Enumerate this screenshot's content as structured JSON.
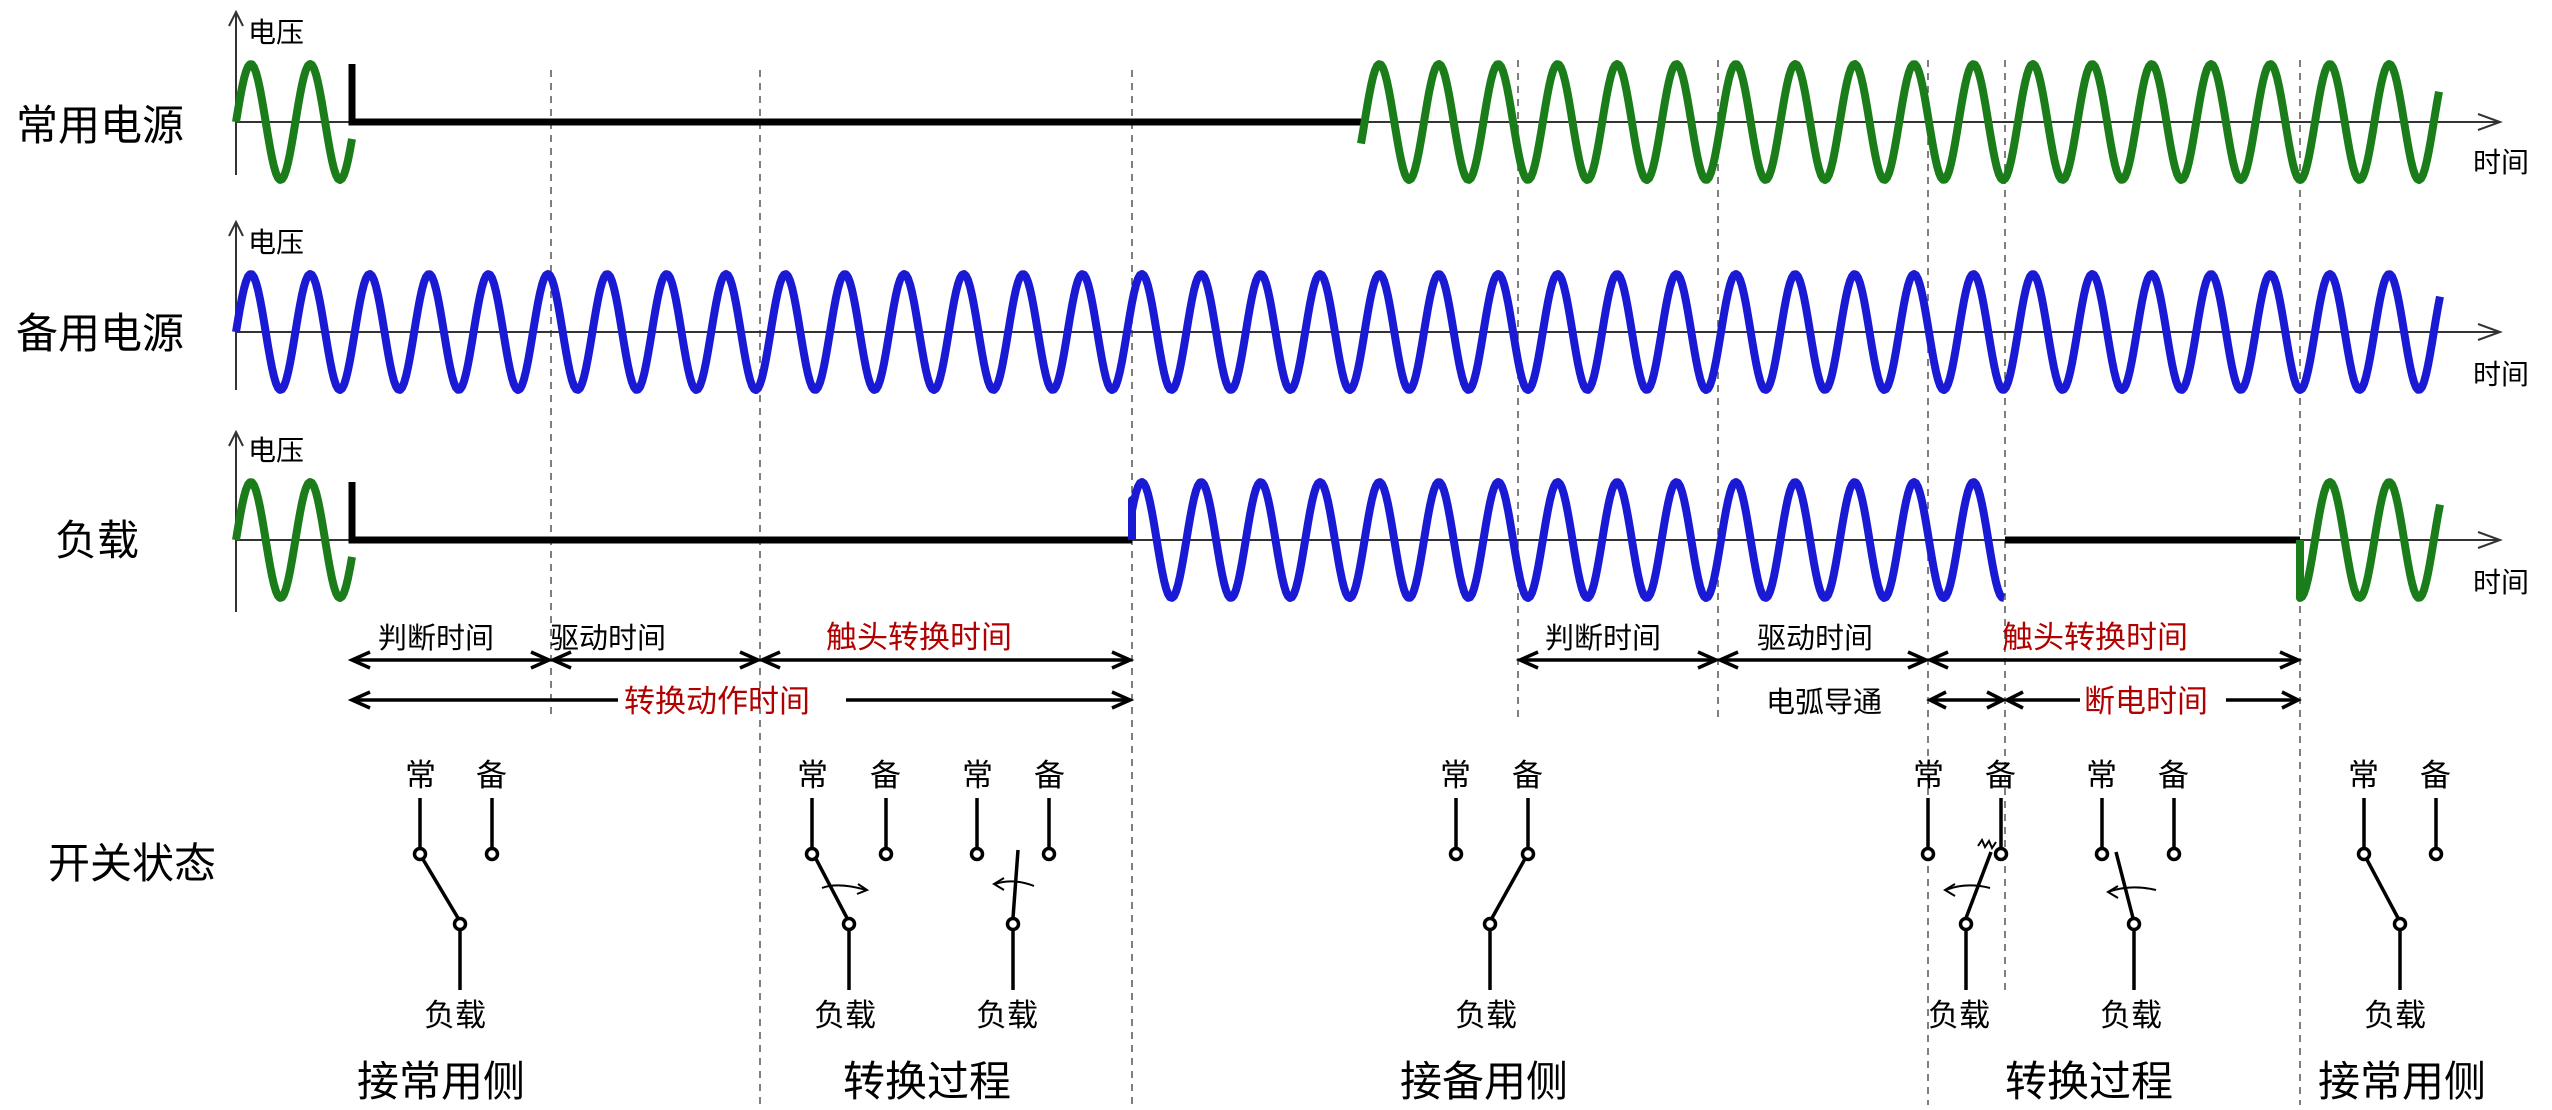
{
  "rows": [
    {
      "label": "常用电源",
      "y_axis": "电压",
      "x_axis": "时间"
    },
    {
      "label": "备用电源",
      "y_axis": "电压",
      "x_axis": "时间"
    },
    {
      "label": "负载",
      "y_axis": "电压",
      "x_axis": "时间"
    }
  ],
  "switch_row_label": "开关状态",
  "timing_left": {
    "judge": "判断时间",
    "drive": "驱动时间",
    "contact": "触头转换时间",
    "total": "转换动作时间"
  },
  "timing_right": {
    "judge": "判断时间",
    "drive": "驱动时间",
    "contact": "触头转换时间",
    "arc": "电弧导通",
    "off": "断电时间"
  },
  "switch_labels": {
    "normal": "常",
    "backup": "备",
    "load": "负载"
  },
  "phases": [
    "接常用侧",
    "转换过程",
    "接备用侧",
    "转换过程",
    "接常用侧"
  ],
  "colors": {
    "normal_source": "#1a7d1a",
    "backup_source": "#1a1ad4",
    "highlight_text": "#b00000"
  }
}
